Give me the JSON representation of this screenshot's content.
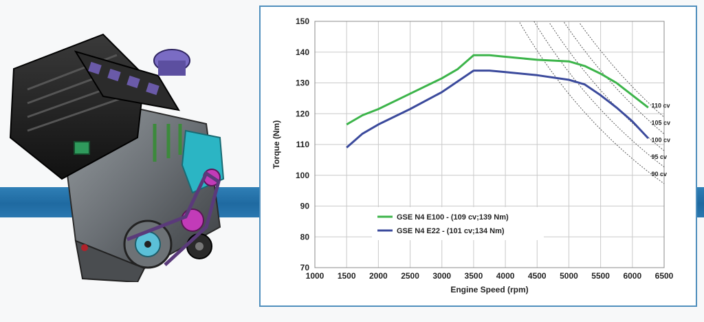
{
  "colors": {
    "green": "#3cb44a",
    "blue": "#3b4a9c",
    "band": "#2775ad",
    "frame": "#4f8fbd"
  },
  "chart_data": {
    "type": "line",
    "title": "",
    "xlabel": "Engine Speed (rpm)",
    "ylabel": "Torque (Nm)",
    "xlim": [
      1000,
      6500
    ],
    "ylim": [
      70,
      150
    ],
    "xticks": [
      1000,
      1500,
      2000,
      2500,
      3000,
      3500,
      4000,
      4500,
      5000,
      5500,
      6000,
      6500
    ],
    "yticks": [
      70,
      80,
      90,
      100,
      110,
      120,
      130,
      140,
      150
    ],
    "grid": true,
    "legend_position": "bottom-left",
    "series": [
      {
        "name": "GSE N4 E100  - (109 cv;139 Nm)",
        "color": "#3cb44a",
        "x": [
          1500,
          1750,
          2000,
          2500,
          3000,
          3250,
          3500,
          3750,
          4000,
          4500,
          5000,
          5250,
          5500,
          5750,
          6000,
          6250
        ],
        "y": [
          116.5,
          119.5,
          121.5,
          126.5,
          131.5,
          134.5,
          139,
          139,
          138.5,
          137.5,
          137,
          135.5,
          133,
          130,
          126,
          122
        ]
      },
      {
        "name": "GSE N4  E22 - (101 cv;134 Nm)",
        "color": "#3b4a9c",
        "x": [
          1500,
          1750,
          2000,
          2500,
          3000,
          3250,
          3500,
          3750,
          4000,
          4500,
          5000,
          5250,
          5500,
          5750,
          6000,
          6250
        ],
        "y": [
          109,
          113.5,
          116.5,
          121.5,
          127,
          130.5,
          134,
          134,
          133.5,
          132.5,
          131,
          129.5,
          126,
          122,
          117.5,
          112
        ]
      }
    ],
    "power_lines": [
      {
        "label": "110 cv",
        "kw": 80.9
      },
      {
        "label": "105 cv",
        "kw": 77.2
      },
      {
        "label": "100 cv",
        "kw": 73.5
      },
      {
        "label": "95 cv",
        "kw": 69.9
      },
      {
        "label": "90 cv",
        "kw": 66.2
      }
    ]
  }
}
